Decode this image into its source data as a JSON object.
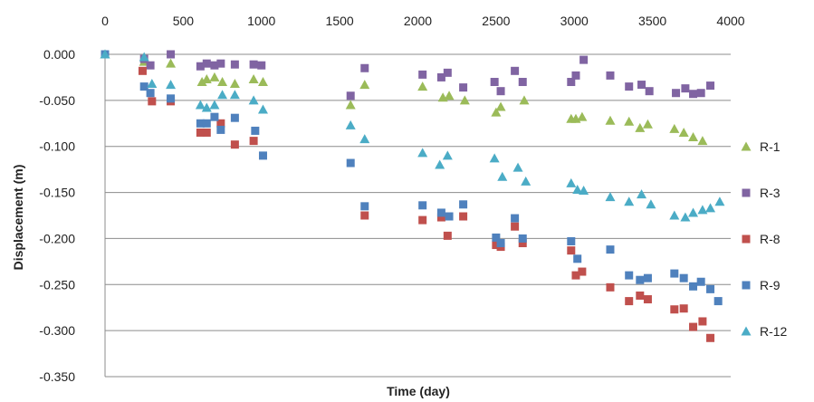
{
  "chart_data": {
    "type": "scatter",
    "xlabel": "Time (day)",
    "ylabel": "Displacement (m)",
    "xlim": [
      0,
      4000
    ],
    "ylim": [
      -0.35,
      0.0
    ],
    "x_ticks": [
      0,
      500,
      1000,
      1500,
      2000,
      2500,
      3000,
      3500,
      4000
    ],
    "y_ticks": [
      0.0,
      -0.05,
      -0.1,
      -0.15,
      -0.2,
      -0.25,
      -0.3,
      -0.35
    ],
    "x_tick_labels": [
      "0",
      "500",
      "1000",
      "1500",
      "2000",
      "2500",
      "3000",
      "3500",
      "4000"
    ],
    "y_tick_labels": [
      "0.000",
      "-0.050",
      "-0.100",
      "-0.150",
      "-0.200",
      "-0.250",
      "-0.300",
      "-0.350"
    ],
    "x_axis_position": "top",
    "grid": "horizontal",
    "legend_position": "right",
    "series": [
      {
        "name": "R-1",
        "marker": "triangle",
        "color": "#9bbb59",
        "points": [
          [
            0,
            0.0
          ],
          [
            250,
            -0.008
          ],
          [
            420,
            -0.01
          ],
          [
            620,
            -0.03
          ],
          [
            650,
            -0.027
          ],
          [
            700,
            -0.025
          ],
          [
            750,
            -0.03
          ],
          [
            830,
            -0.032
          ],
          [
            950,
            -0.027
          ],
          [
            1010,
            -0.03
          ],
          [
            1570,
            -0.055
          ],
          [
            1660,
            -0.033
          ],
          [
            2030,
            -0.035
          ],
          [
            2160,
            -0.047
          ],
          [
            2200,
            -0.045
          ],
          [
            2300,
            -0.05
          ],
          [
            2500,
            -0.063
          ],
          [
            2530,
            -0.057
          ],
          [
            2680,
            -0.05
          ],
          [
            2980,
            -0.07
          ],
          [
            3010,
            -0.07
          ],
          [
            3050,
            -0.068
          ],
          [
            3230,
            -0.072
          ],
          [
            3350,
            -0.073
          ],
          [
            3420,
            -0.08
          ],
          [
            3470,
            -0.076
          ],
          [
            3640,
            -0.081
          ],
          [
            3700,
            -0.085
          ],
          [
            3760,
            -0.09
          ],
          [
            3820,
            -0.094
          ]
        ]
      },
      {
        "name": "R-3",
        "marker": "square",
        "color": "#8064a2",
        "points": [
          [
            0,
            0.0
          ],
          [
            250,
            -0.005
          ],
          [
            290,
            -0.012
          ],
          [
            420,
            0.0
          ],
          [
            610,
            -0.013
          ],
          [
            650,
            -0.01
          ],
          [
            700,
            -0.012
          ],
          [
            740,
            -0.01
          ],
          [
            830,
            -0.011
          ],
          [
            950,
            -0.011
          ],
          [
            1000,
            -0.012
          ],
          [
            1570,
            -0.045
          ],
          [
            1660,
            -0.015
          ],
          [
            2030,
            -0.022
          ],
          [
            2150,
            -0.025
          ],
          [
            2190,
            -0.02
          ],
          [
            2290,
            -0.036
          ],
          [
            2490,
            -0.03
          ],
          [
            2530,
            -0.04
          ],
          [
            2620,
            -0.018
          ],
          [
            2670,
            -0.03
          ],
          [
            2980,
            -0.03
          ],
          [
            3010,
            -0.023
          ],
          [
            3060,
            -0.006
          ],
          [
            3230,
            -0.023
          ],
          [
            3350,
            -0.035
          ],
          [
            3430,
            -0.033
          ],
          [
            3480,
            -0.04
          ],
          [
            3650,
            -0.042
          ],
          [
            3710,
            -0.037
          ],
          [
            3760,
            -0.043
          ],
          [
            3810,
            -0.042
          ],
          [
            3870,
            -0.034
          ]
        ]
      },
      {
        "name": "R-8",
        "marker": "square",
        "color": "#c0504d",
        "points": [
          [
            0,
            0.0
          ],
          [
            240,
            -0.018
          ],
          [
            300,
            -0.051
          ],
          [
            420,
            -0.051
          ],
          [
            610,
            -0.085
          ],
          [
            650,
            -0.085
          ],
          [
            740,
            -0.075
          ],
          [
            830,
            -0.098
          ],
          [
            950,
            -0.094
          ],
          [
            1660,
            -0.175
          ],
          [
            2030,
            -0.18
          ],
          [
            2150,
            -0.177
          ],
          [
            2190,
            -0.197
          ],
          [
            2290,
            -0.176
          ],
          [
            2500,
            -0.207
          ],
          [
            2530,
            -0.209
          ],
          [
            2620,
            -0.187
          ],
          [
            2670,
            -0.205
          ],
          [
            2980,
            -0.213
          ],
          [
            3010,
            -0.24
          ],
          [
            3050,
            -0.236
          ],
          [
            3230,
            -0.253
          ],
          [
            3350,
            -0.268
          ],
          [
            3420,
            -0.262
          ],
          [
            3470,
            -0.266
          ],
          [
            3640,
            -0.277
          ],
          [
            3700,
            -0.276
          ],
          [
            3760,
            -0.296
          ],
          [
            3820,
            -0.29
          ],
          [
            3870,
            -0.308
          ]
        ]
      },
      {
        "name": "R-9",
        "marker": "square",
        "color": "#4f81bd",
        "points": [
          [
            0,
            0.0
          ],
          [
            250,
            -0.035
          ],
          [
            290,
            -0.042
          ],
          [
            420,
            -0.048
          ],
          [
            610,
            -0.075
          ],
          [
            650,
            -0.075
          ],
          [
            700,
            -0.068
          ],
          [
            740,
            -0.082
          ],
          [
            830,
            -0.069
          ],
          [
            960,
            -0.083
          ],
          [
            1010,
            -0.11
          ],
          [
            1570,
            -0.118
          ],
          [
            1660,
            -0.165
          ],
          [
            2030,
            -0.164
          ],
          [
            2150,
            -0.172
          ],
          [
            2200,
            -0.176
          ],
          [
            2290,
            -0.163
          ],
          [
            2500,
            -0.199
          ],
          [
            2530,
            -0.205
          ],
          [
            2620,
            -0.178
          ],
          [
            2670,
            -0.2
          ],
          [
            2980,
            -0.203
          ],
          [
            3020,
            -0.222
          ],
          [
            3230,
            -0.212
          ],
          [
            3350,
            -0.24
          ],
          [
            3420,
            -0.245
          ],
          [
            3470,
            -0.243
          ],
          [
            3640,
            -0.238
          ],
          [
            3700,
            -0.243
          ],
          [
            3760,
            -0.252
          ],
          [
            3810,
            -0.247
          ],
          [
            3870,
            -0.255
          ],
          [
            3920,
            -0.268
          ]
        ]
      },
      {
        "name": "R-12",
        "marker": "triangle",
        "color": "#4bacc6",
        "points": [
          [
            0,
            0.0
          ],
          [
            250,
            -0.003
          ],
          [
            300,
            -0.032
          ],
          [
            420,
            -0.033
          ],
          [
            610,
            -0.055
          ],
          [
            650,
            -0.058
          ],
          [
            700,
            -0.055
          ],
          [
            750,
            -0.044
          ],
          [
            830,
            -0.044
          ],
          [
            950,
            -0.05
          ],
          [
            1010,
            -0.06
          ],
          [
            1570,
            -0.077
          ],
          [
            1660,
            -0.092
          ],
          [
            2030,
            -0.107
          ],
          [
            2140,
            -0.12
          ],
          [
            2190,
            -0.11
          ],
          [
            2490,
            -0.113
          ],
          [
            2540,
            -0.133
          ],
          [
            2640,
            -0.123
          ],
          [
            2690,
            -0.138
          ],
          [
            2980,
            -0.14
          ],
          [
            3020,
            -0.147
          ],
          [
            3060,
            -0.148
          ],
          [
            3230,
            -0.155
          ],
          [
            3350,
            -0.16
          ],
          [
            3430,
            -0.152
          ],
          [
            3490,
            -0.163
          ],
          [
            3640,
            -0.175
          ],
          [
            3710,
            -0.177
          ],
          [
            3760,
            -0.172
          ],
          [
            3820,
            -0.169
          ],
          [
            3870,
            -0.167
          ],
          [
            3930,
            -0.16
          ]
        ]
      }
    ]
  }
}
